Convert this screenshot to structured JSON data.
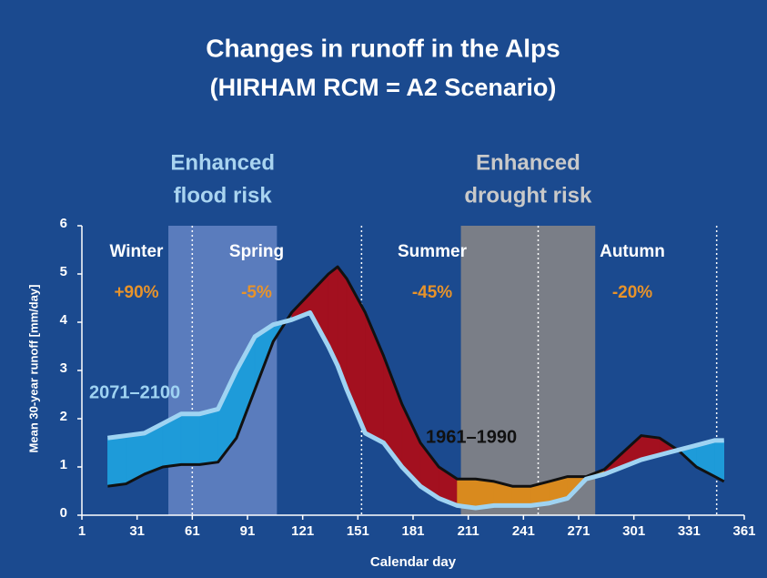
{
  "chart_data": {
    "type": "area_between",
    "title": "Changes in runoff in the Alps",
    "subtitle": "(HIRHAM RCM = A2 Scenario)",
    "x_label": "Calendar day",
    "y_label": "Mean 30-year runoff [mm/day]",
    "xlim": [
      1,
      361
    ],
    "ylim": [
      0,
      6
    ],
    "xticks": [
      1,
      31,
      61,
      91,
      121,
      151,
      181,
      211,
      241,
      271,
      301,
      331,
      361
    ],
    "yticks": [
      0,
      1,
      2,
      3,
      4,
      5,
      6
    ],
    "x": [
      15,
      25,
      35,
      45,
      55,
      65,
      75,
      85,
      95,
      105,
      115,
      125,
      135,
      140,
      145,
      155,
      165,
      175,
      185,
      195,
      205,
      215,
      225,
      235,
      245,
      255,
      265,
      275,
      285,
      295,
      305,
      315,
      325,
      335,
      345,
      350
    ],
    "series": [
      {
        "name": "1961–1990",
        "color": "#111111",
        "values": [
          0.6,
          0.65,
          0.85,
          1.0,
          1.05,
          1.05,
          1.1,
          1.6,
          2.6,
          3.6,
          4.2,
          4.6,
          5.0,
          5.15,
          4.9,
          4.2,
          3.3,
          2.3,
          1.5,
          1.0,
          0.75,
          0.75,
          0.7,
          0.6,
          0.6,
          0.7,
          0.8,
          0.8,
          0.95,
          1.3,
          1.65,
          1.6,
          1.35,
          1.0,
          0.8,
          0.7
        ]
      },
      {
        "name": "2071–2100",
        "color": "#9fd3f2",
        "values": [
          1.6,
          1.65,
          1.7,
          1.9,
          2.1,
          2.1,
          2.2,
          3.0,
          3.7,
          3.95,
          4.05,
          4.2,
          3.5,
          3.1,
          2.6,
          1.7,
          1.5,
          1.0,
          0.6,
          0.35,
          0.2,
          0.15,
          0.2,
          0.2,
          0.2,
          0.25,
          0.35,
          0.75,
          0.85,
          1.0,
          1.15,
          1.25,
          1.35,
          1.45,
          1.55,
          1.55
        ]
      }
    ],
    "fills": {
      "increase": "#1e9bd9",
      "decrease": "#a3101f",
      "drought_decrease": "#d98a1e"
    },
    "bands": [
      {
        "label_lines": [
          "Enhanced",
          "flood risk"
        ],
        "xlim": [
          48,
          107
        ],
        "color": "#5a7cbd",
        "text_color": "#a9d4f0"
      },
      {
        "label_lines": [
          "Enhanced",
          "drought risk"
        ],
        "xlim": [
          207,
          280
        ],
        "color": "#7a7e87",
        "text_color": "#c9c9c9"
      }
    ],
    "season_boundaries": [
      61,
      153,
      249,
      346
    ],
    "seasons": [
      {
        "name": "Winter",
        "change": "+90%"
      },
      {
        "name": "Spring",
        "change": "-5%"
      },
      {
        "name": "Summer",
        "change": "-45%"
      },
      {
        "name": "Autumn",
        "change": "-20%"
      }
    ]
  }
}
